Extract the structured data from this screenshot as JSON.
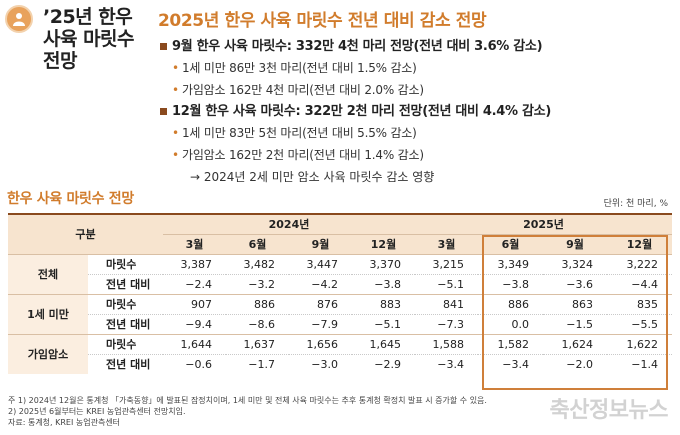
{
  "side_title": {
    "line1": "’25년 한우",
    "line2": "사육 마릿수",
    "line3": "전망"
  },
  "main_title": "2025년 한우 사육 마릿수 전년 대비 감소 전망",
  "bullets": {
    "sep": "■",
    "sep_dot": "•",
    "b1": "9월 한우 사육 마릿수: 332만 4천 마리 전망(전년 대비 3.6% 감소)",
    "b1_1": "1세 미만 86만 3천 마리(전년 대비 1.5% 감소)",
    "b1_2": "가임암소 162만 4천 마리(전년 대비 2.0% 감소)",
    "b2": "12월 한우 사육 마릿수: 322만 2천 마리 전망(전년 대비 4.4% 감소)",
    "b2_1": "1세 미만 83만 5천 마리(전년 대비 5.5% 감소)",
    "b2_2": "가임암소 162만 2천 마리(전년 대비 1.4% 감소)",
    "b2_3": "→ 2024년 2세 미만 암소 사육 마릿수 감소 영향"
  },
  "section_title": "한우 사육 마릿수 전망",
  "unit": "단위: 천 마리, %",
  "table": {
    "gubun": "구분",
    "years": [
      "2024년",
      "2025년"
    ],
    "months": [
      "3월",
      "6월",
      "9월",
      "12월",
      "3월",
      "6월",
      "9월",
      "12월"
    ],
    "rows": [
      {
        "cat": "전체",
        "metrics": [
          {
            "label": "마릿수",
            "values": [
              "3,387",
              "3,482",
              "3,447",
              "3,370",
              "3,215",
              "3,349",
              "3,324",
              "3,222"
            ]
          },
          {
            "label": "전년 대비",
            "values": [
              "−2.4",
              "−3.2",
              "−4.2",
              "−3.8",
              "−5.1",
              "−3.8",
              "−3.6",
              "−4.4"
            ]
          }
        ]
      },
      {
        "cat": "1세 미만",
        "metrics": [
          {
            "label": "마릿수",
            "values": [
              "907",
              "886",
              "876",
              "883",
              "841",
              "886",
              "863",
              "835"
            ]
          },
          {
            "label": "전년 대비",
            "values": [
              "−9.4",
              "−8.6",
              "−7.9",
              "−5.1",
              "−7.3",
              "0.0",
              "−1.5",
              "−5.5"
            ]
          }
        ]
      },
      {
        "cat": "가임암소",
        "metrics": [
          {
            "label": "마릿수",
            "values": [
              "1,644",
              "1,637",
              "1,656",
              "1,645",
              "1,588",
              "1,582",
              "1,624",
              "1,622"
            ]
          },
          {
            "label": "전년 대비",
            "values": [
              "−0.6",
              "−1.7",
              "−3.0",
              "−2.9",
              "−3.4",
              "−3.4",
              "−2.0",
              "−1.4"
            ]
          }
        ]
      }
    ]
  },
  "footnotes": {
    "n1": "주   1) 2024년 12월은 통계청 「가축동향」에 발표된 잠정치이며, 1세 미만 및 전체 사육 마릿수는 추후 통계청 확정치 발표 시 증가할 수 있음.",
    "n2": "       2) 2025년 6월부터는 KREI 농업관측센터 전망치임.",
    "n3": "자료: 통계청, KREI 농업관측센터"
  },
  "watermark": "축산정보뉴스",
  "colors": {
    "accent": "#d17c2c",
    "header_bg": "#f7e4cf",
    "highlight_border": "#cf7f3a",
    "bullet_square": "#8a4a1e"
  },
  "icons": {
    "logo": "krei-emblem-icon"
  }
}
